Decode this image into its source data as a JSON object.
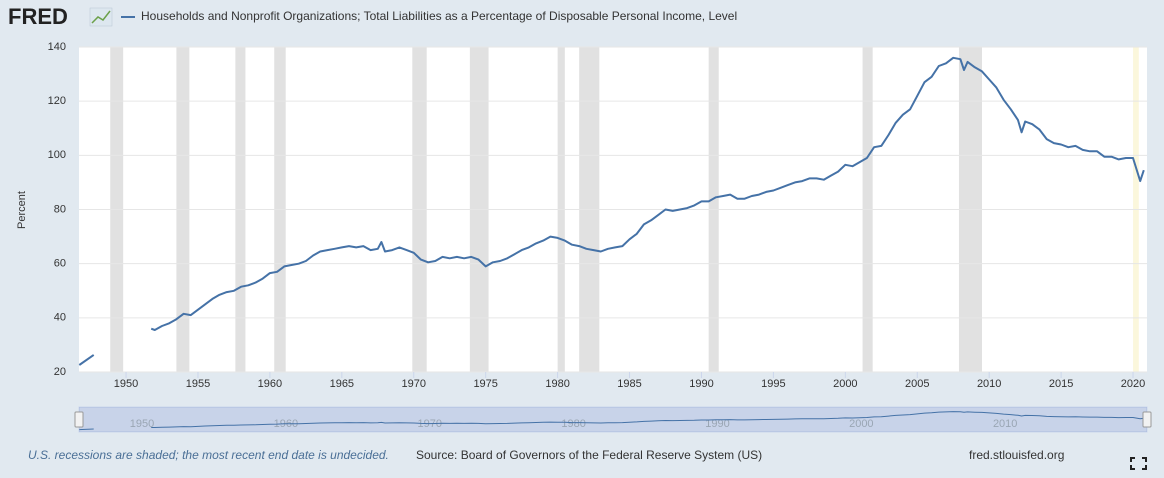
{
  "chart_data": {
    "type": "line",
    "logo": "FRED",
    "title": "Households and Nonprofit Organizations; Total Liabilities as a Percentage of Disposable Personal Income, Level",
    "y_label": "Percent",
    "footnote": "U.S. recessions are shaded; the most recent end date is undecided.",
    "source": "Source: Board of Governors of the Federal Reserve System (US)",
    "site": "fred.stlouisfed.org",
    "xlim": [
      1946.73,
      2020.97
    ],
    "xticks": [
      1950,
      1955,
      1960,
      1965,
      1970,
      1975,
      1980,
      1985,
      1990,
      1995,
      2000,
      2005,
      2010,
      2015,
      2020
    ],
    "ylim": [
      20,
      140
    ],
    "yticks": [
      20,
      40,
      60,
      80,
      100,
      120,
      140
    ],
    "grid": true,
    "recessions": [
      [
        1948.9,
        1949.8
      ],
      [
        1953.5,
        1954.4
      ],
      [
        1957.6,
        1958.3
      ],
      [
        1960.3,
        1961.1
      ],
      [
        1969.9,
        1970.9
      ],
      [
        1973.9,
        1975.2
      ],
      [
        1980.0,
        1980.5
      ],
      [
        1981.5,
        1982.9
      ],
      [
        1990.5,
        1991.2
      ],
      [
        2001.2,
        2001.9
      ],
      [
        2007.9,
        2009.5
      ],
      [
        2020.0,
        2020.4
      ]
    ],
    "navigator_ticks": [
      1950,
      1960,
      1970,
      1980,
      1990,
      2000,
      2010
    ],
    "x": [
      1946.75,
      1947.75,
      1949.75,
      1951.75,
      1952,
      1952.5,
      1953,
      1953.5,
      1954,
      1954.5,
      1955,
      1955.5,
      1956,
      1956.5,
      1957,
      1957.5,
      1958,
      1958.5,
      1959,
      1959.5,
      1960,
      1960.5,
      1961,
      1961.5,
      1962,
      1962.5,
      1963,
      1963.5,
      1964,
      1964.5,
      1965,
      1965.5,
      1966,
      1966.5,
      1967,
      1967.5,
      1967.75,
      1968,
      1968.5,
      1969,
      1969.5,
      1970,
      1970.5,
      1971,
      1971.5,
      1972,
      1972.5,
      1973,
      1973.5,
      1974,
      1974.5,
      1975,
      1975.5,
      1976,
      1976.5,
      1977,
      1977.5,
      1978,
      1978.5,
      1979,
      1979.5,
      1980,
      1980.5,
      1981,
      1981.5,
      1982,
      1982.5,
      1983,
      1983.5,
      1984,
      1984.5,
      1985,
      1985.5,
      1986,
      1986.5,
      1987,
      1987.5,
      1988,
      1988.5,
      1989,
      1989.5,
      1990,
      1990.5,
      1991,
      1991.5,
      1992,
      1992.5,
      1993,
      1993.5,
      1994,
      1994.5,
      1995,
      1995.5,
      1996,
      1996.5,
      1997,
      1997.5,
      1998,
      1998.5,
      1999,
      1999.5,
      2000,
      2000.5,
      2001,
      2001.5,
      2002,
      2002.5,
      2003,
      2003.5,
      2004,
      2004.5,
      2005,
      2005.5,
      2006,
      2006.5,
      2007,
      2007.5,
      2008,
      2008.25,
      2008.5,
      2009,
      2009.5,
      2010,
      2010.5,
      2011,
      2011.5,
      2012,
      2012.25,
      2012.5,
      2013,
      2013.5,
      2014,
      2014.5,
      2015,
      2015.5,
      2016,
      2016.5,
      2017,
      2017.5,
      2018,
      2018.5,
      2019,
      2019.5,
      2020,
      2020.5,
      2020.75
    ],
    "series": [
      {
        "name": "Households and Nonprofit Organizations; Total Liabilities as a Percentage of Disposable Personal Income, Level",
        "color": "#4572a7",
        "values": [
          22.6,
          26.3,
          null,
          36,
          35.5,
          37,
          38,
          39.5,
          41.5,
          41,
          43,
          45,
          47,
          48.5,
          49.5,
          50,
          51.5,
          52,
          53,
          54.5,
          56.5,
          57,
          59,
          59.5,
          60,
          61,
          63,
          64.5,
          65,
          65.5,
          66,
          66.5,
          66,
          66.5,
          65,
          65.5,
          68,
          64.5,
          65,
          66,
          65,
          64,
          61.5,
          60.5,
          61,
          62.5,
          62,
          62.5,
          62,
          62.5,
          61.5,
          59,
          60.5,
          61,
          62,
          63.5,
          65,
          66,
          67.5,
          68.5,
          70,
          69.5,
          68.5,
          67,
          66.5,
          65.5,
          65,
          64.5,
          65.5,
          66,
          66.5,
          69,
          71,
          74.5,
          76,
          78,
          80,
          79.5,
          80,
          80.5,
          81.5,
          83,
          83,
          84.5,
          85,
          85.5,
          84,
          84,
          85,
          85.5,
          86.5,
          87,
          88,
          89,
          90,
          90.5,
          91.5,
          91.5,
          91,
          92.5,
          94,
          96.5,
          96,
          97.5,
          99,
          103,
          103.5,
          107.5,
          112,
          115,
          117,
          122,
          127,
          129,
          133,
          134,
          136,
          135.5,
          131.5,
          134.5,
          132.5,
          131,
          128,
          125,
          120.5,
          117,
          113,
          108.5,
          112.5,
          111.5,
          109.5,
          106,
          104.5,
          104,
          103,
          103.5,
          102,
          101.5,
          101.5,
          99.5,
          99.5,
          98.5,
          99,
          99,
          90.5,
          94.5
        ]
      }
    ]
  }
}
